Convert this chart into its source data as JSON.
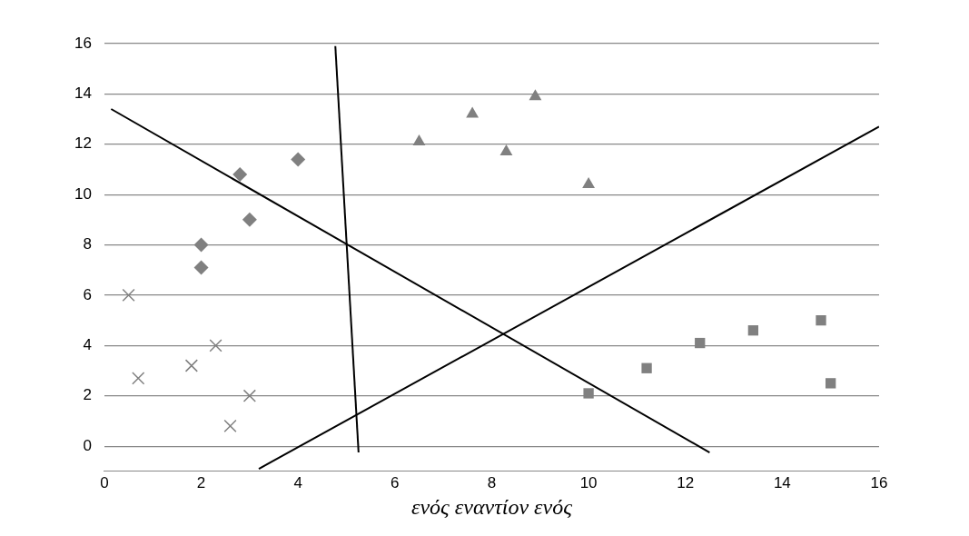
{
  "chart_data": {
    "type": "scatter",
    "xlabel": "ενός εναντίον ενός",
    "xlim": [
      0,
      16
    ],
    "xticks": [
      0,
      2,
      4,
      6,
      8,
      10,
      12,
      14,
      16
    ],
    "ylim": [
      -1,
      16
    ],
    "yticks": [
      0,
      2,
      4,
      6,
      8,
      10,
      12,
      14,
      16
    ],
    "grid": "y",
    "legend": false,
    "series": [
      {
        "color": "#808080",
        "marker": "diamond",
        "x": [
          2.0,
          2.0,
          3.0,
          2.8,
          4.0
        ],
        "values": [
          7.1,
          8.0,
          9.0,
          10.8,
          11.4
        ]
      },
      {
        "color": "#808080",
        "marker": "triangle",
        "x": [
          6.5,
          7.6,
          8.3,
          8.9,
          10.0
        ],
        "values": [
          12.1,
          13.2,
          11.7,
          13.9,
          10.4
        ]
      },
      {
        "color": "#808080",
        "marker": "square",
        "x": [
          10.0,
          11.2,
          12.3,
          13.4,
          14.8,
          15.0
        ],
        "values": [
          2.1,
          3.1,
          4.1,
          4.6,
          5.0,
          2.5
        ]
      },
      {
        "color": "#808080",
        "marker": "cross",
        "x": [
          0.5,
          0.7,
          1.8,
          2.3,
          3.0,
          2.6
        ],
        "values": [
          6.0,
          2.7,
          3.2,
          4.0,
          2.0,
          0.8
        ]
      },
      {
        "type": "line",
        "color": "#000000",
        "marker": "none",
        "line_style": "solid",
        "x": [
          0.14,
          12.5
        ],
        "values": [
          13.4,
          -0.25
        ]
      },
      {
        "type": "line",
        "color": "#000000",
        "marker": "none",
        "line_style": "solid",
        "x": [
          4.77,
          5.25
        ],
        "values": [
          15.9,
          -0.25
        ]
      },
      {
        "type": "line",
        "color": "#000000",
        "marker": "none",
        "line_style": "solid",
        "x": [
          3.19,
          16
        ],
        "values": [
          -0.9,
          12.7
        ]
      }
    ]
  }
}
